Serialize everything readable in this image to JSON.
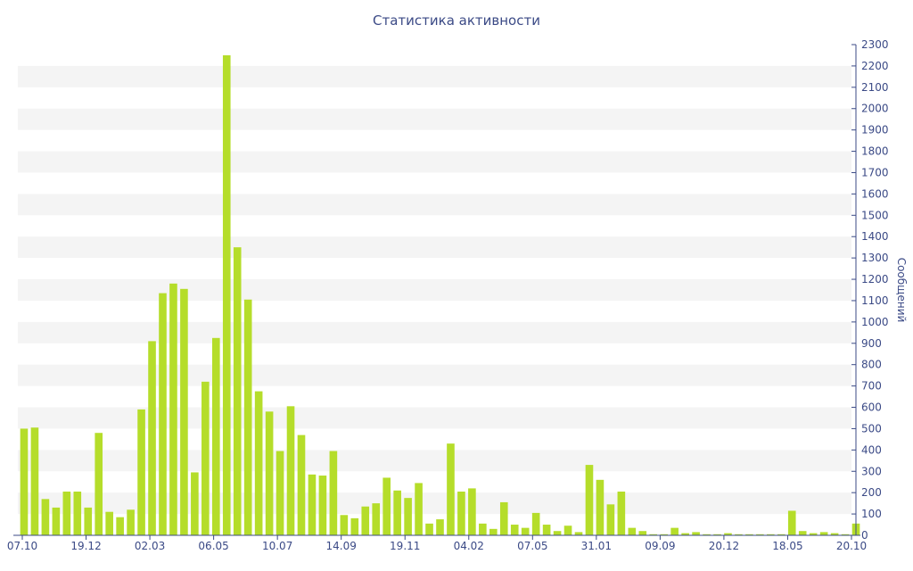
{
  "chart_data": {
    "type": "bar",
    "title": "Статистика активности",
    "xlabel": "",
    "ylabel": "Сообщений",
    "ylim": [
      0,
      2300
    ],
    "y_ticks": [
      0,
      100,
      200,
      300,
      400,
      500,
      600,
      700,
      800,
      900,
      1000,
      1100,
      1200,
      1300,
      1400,
      1500,
      1600,
      1700,
      1800,
      1900,
      2000,
      2100,
      2200,
      2300
    ],
    "x_tick_labels": [
      "07.10",
      "19.12",
      "02.03",
      "06.05",
      "10.07",
      "14.09",
      "19.11",
      "04.02",
      "07.05",
      "31.01",
      "09.09",
      "20.12",
      "18.05",
      "20.10"
    ],
    "colors": {
      "bar": "#b5dd2a",
      "band": "#f4f4f4",
      "text": "#3b4a86",
      "axis": "#3b4a86"
    },
    "grid": "alternating horizontal bands",
    "values": [
      500,
      505,
      170,
      130,
      205,
      205,
      130,
      480,
      110,
      85,
      120,
      590,
      910,
      1135,
      1180,
      1155,
      295,
      720,
      925,
      2250,
      1350,
      1105,
      675,
      580,
      395,
      605,
      470,
      285,
      280,
      395,
      95,
      80,
      135,
      150,
      270,
      210,
      175,
      245,
      55,
      75,
      430,
      205,
      220,
      55,
      30,
      155,
      50,
      35,
      105,
      50,
      20,
      45,
      15,
      330,
      260,
      145,
      205,
      35,
      20,
      5,
      5,
      35,
      10,
      15,
      5,
      5,
      10,
      5,
      5,
      5,
      5,
      5,
      115,
      20,
      10,
      15,
      10,
      5,
      55
    ]
  }
}
